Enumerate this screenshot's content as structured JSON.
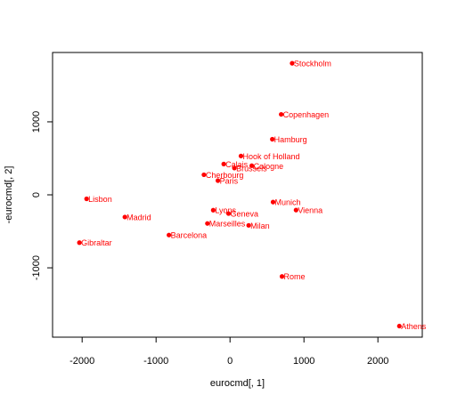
{
  "colors": {
    "points": "#ff0000",
    "labels": "#ff0000",
    "axis": "#000000",
    "background": "#ffffff"
  },
  "chart_data": {
    "type": "scatter",
    "title": "",
    "xlabel": "eurocmd[, 1]",
    "ylabel": "-eurocmd[, 2]",
    "xlim": [
      -2400,
      2600
    ],
    "ylim": [
      -1950,
      1950
    ],
    "xticks": [
      -2000,
      -1000,
      0,
      1000,
      2000
    ],
    "yticks": [
      -1000,
      0,
      1000
    ],
    "xtick_labels": [
      "-2000",
      "-1000",
      "0",
      "1000",
      "2000"
    ],
    "ytick_labels": [
      "-1000",
      "0",
      "1000"
    ],
    "grid": false,
    "points": [
      {
        "label": "Athens",
        "x": 2290,
        "y": -1798
      },
      {
        "label": "Barcelona",
        "x": -826,
        "y": -551
      },
      {
        "label": "Brussels",
        "x": 59,
        "y": 367
      },
      {
        "label": "Calais",
        "x": -85,
        "y": 422
      },
      {
        "label": "Cherbourg",
        "x": -353,
        "y": 275
      },
      {
        "label": "Cologne",
        "x": 294,
        "y": 399
      },
      {
        "label": "Copenhagen",
        "x": 692,
        "y": 1102
      },
      {
        "label": "Geneva",
        "x": -20,
        "y": -257
      },
      {
        "label": "Gibraltar",
        "x": -2037,
        "y": -655
      },
      {
        "label": "Hamburg",
        "x": 572,
        "y": 762
      },
      {
        "label": "Hook of Holland",
        "x": 148,
        "y": 532
      },
      {
        "label": "Lisbon",
        "x": -1940,
        "y": -55
      },
      {
        "label": "Lyons",
        "x": -227,
        "y": -210
      },
      {
        "label": "Madrid",
        "x": -1422,
        "y": -304
      },
      {
        "label": "Marseilles",
        "x": -306,
        "y": -392
      },
      {
        "label": "Milan",
        "x": 252,
        "y": -418
      },
      {
        "label": "Munich",
        "x": 582,
        "y": -99
      },
      {
        "label": "Paris",
        "x": -164,
        "y": 195
      },
      {
        "label": "Rome",
        "x": 703,
        "y": -1118
      },
      {
        "label": "Stockholm",
        "x": 840,
        "y": 1802
      },
      {
        "label": "Vienna",
        "x": 893,
        "y": -209
      }
    ]
  }
}
